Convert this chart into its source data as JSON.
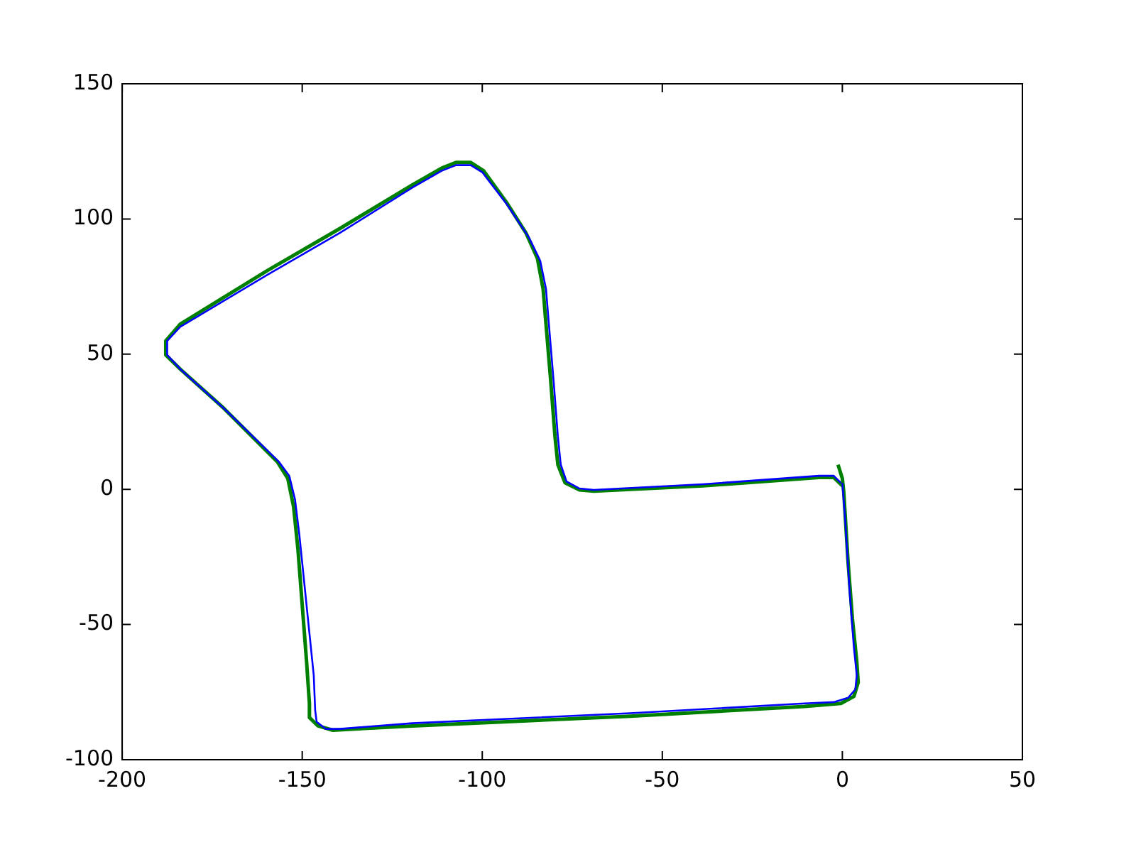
{
  "chart_data": {
    "type": "line",
    "xlim": [
      -200,
      50
    ],
    "xticks": [
      -200,
      -150,
      -100,
      -50,
      0,
      50
    ],
    "ylim": [
      -100,
      150
    ],
    "yticks": [
      -100,
      -50,
      0,
      50,
      100,
      150
    ],
    "grid": false,
    "legend": false,
    "marker": "none",
    "line_style": "solid",
    "series": [
      {
        "color": "#0000ff",
        "x": [
          0.0,
          0.8,
          2.0,
          3.2,
          4.0,
          3.6,
          1.6,
          -2.4,
          -10.5,
          -58.9,
          -119.4,
          -139.5,
          -143.5,
          -146.0,
          -146.4,
          -146.8,
          -148.0,
          -149.6,
          -150.8,
          -152.0,
          -153.6,
          -156.5,
          -159.7,
          -171.8,
          -183.9,
          -187.5,
          -187.5,
          -183.9,
          -159.7,
          -139.5,
          -119.4,
          -111.3,
          -107.3,
          -103.2,
          -100.0,
          -93.1,
          -87.1,
          -83.9,
          -82.3,
          -81.5,
          -80.2,
          -79.0,
          -78.2,
          -76.6,
          -73.0,
          -69.0,
          -38.7,
          -6.5,
          -2.4,
          -0.4
        ],
        "values": [
          2.4,
          -11.6,
          -37.6,
          -58.4,
          -68.8,
          -74.0,
          -77.1,
          -78.7,
          -79.2,
          -82.8,
          -86.5,
          -88.6,
          -88.6,
          -86.0,
          -81.8,
          -68.8,
          -53.2,
          -32.4,
          -16.8,
          -3.8,
          5.0,
          10.2,
          14.4,
          30.0,
          44.5,
          49.7,
          54.9,
          60.1,
          79.3,
          94.9,
          111.6,
          117.8,
          119.9,
          119.9,
          117.3,
          105.3,
          93.3,
          84.5,
          74.1,
          61.1,
          40.3,
          19.5,
          9.1,
          2.9,
          0.3,
          -0.2,
          1.9,
          5.0,
          5.0,
          2.4
        ]
      },
      {
        "color": "#008000",
        "x": [
          -1.2,
          0.0,
          0.4,
          1.6,
          2.8,
          4.0,
          4.4,
          3.2,
          -0.4,
          -10.5,
          -58.9,
          -119.4,
          -141.5,
          -145.6,
          -148.0,
          -148.0,
          -148.8,
          -150.0,
          -151.2,
          -152.4,
          -154.0,
          -156.9,
          -171.8,
          -183.9,
          -187.9,
          -187.9,
          -183.9,
          -159.7,
          -139.5,
          -119.4,
          -111.3,
          -107.3,
          -103.2,
          -99.6,
          -93.1,
          -87.9,
          -84.7,
          -83.1,
          -82.3,
          -81.0,
          -79.8,
          -79.0,
          -77.0,
          -73.0,
          -69.0,
          -38.7,
          -6.5,
          -2.4,
          0.0
        ],
        "values": [
          9.1,
          4.0,
          -1.2,
          -27.2,
          -48.0,
          -63.6,
          -71.4,
          -76.6,
          -79.2,
          -80.3,
          -83.9,
          -87.5,
          -89.1,
          -87.5,
          -84.4,
          -79.2,
          -63.6,
          -42.8,
          -22.0,
          -6.4,
          4.0,
          10.2,
          30.0,
          44.5,
          49.7,
          54.9,
          61.1,
          80.9,
          96.5,
          112.6,
          118.8,
          120.9,
          120.9,
          117.8,
          105.8,
          94.9,
          85.5,
          74.1,
          61.1,
          40.3,
          19.5,
          9.1,
          2.4,
          -0.2,
          -0.7,
          1.3,
          4.4,
          4.4,
          1.3
        ]
      }
    ]
  }
}
